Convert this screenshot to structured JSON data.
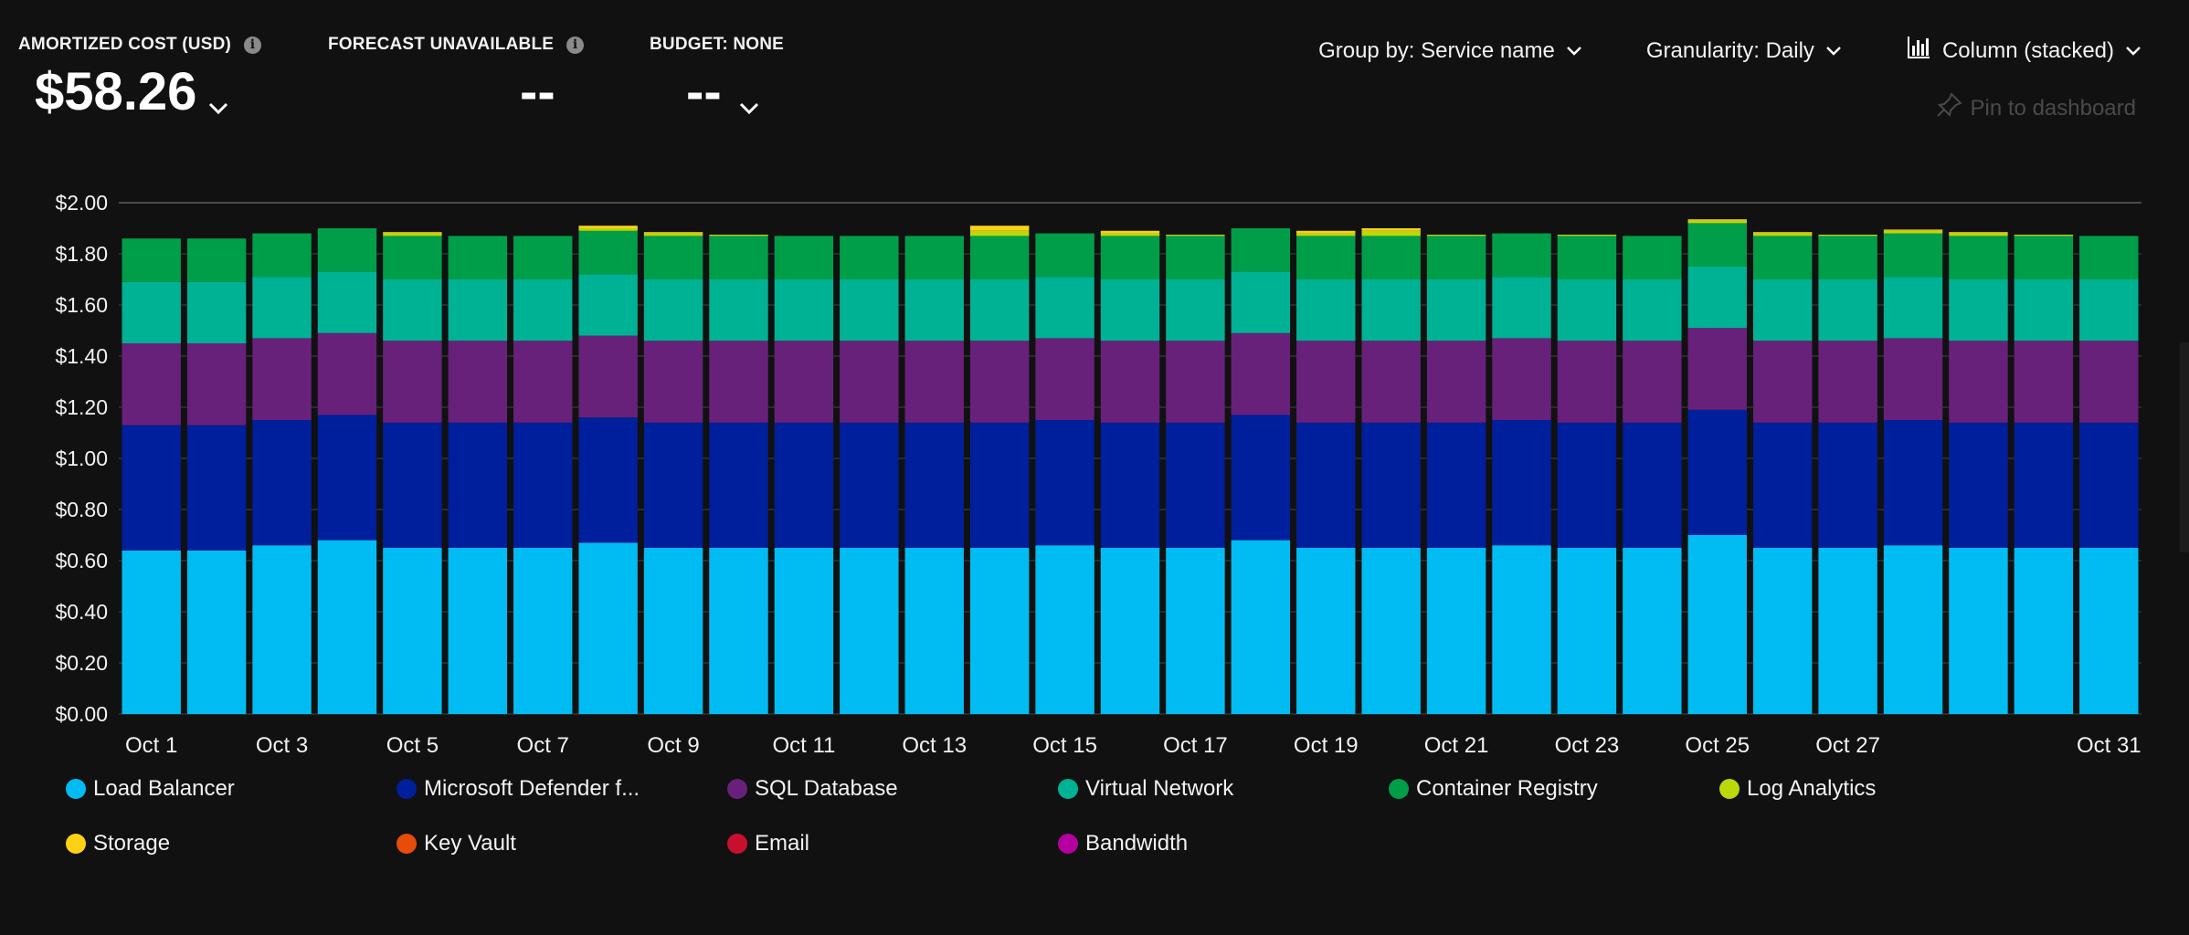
{
  "kpis": [
    {
      "label": "AMORTIZED COST (USD)",
      "value": "$58.26",
      "info": true,
      "chevron": true
    },
    {
      "label": "FORECAST UNAVAILABLE",
      "value": "--",
      "info": true,
      "chevron": false
    },
    {
      "label": "BUDGET: NONE",
      "value": "--",
      "info": false,
      "chevron": true
    }
  ],
  "toolbar": {
    "group_by": "Group by: Service name",
    "granularity": "Granularity: Daily",
    "chart_view": "Column (stacked)",
    "pin": "Pin to dashboard"
  },
  "chart_data": {
    "type": "bar",
    "stacked": true,
    "ylim": [
      0,
      2.0
    ],
    "yticks": [
      0,
      0.2,
      0.4,
      0.6,
      0.8,
      1.0,
      1.2,
      1.4,
      1.6,
      1.8,
      2.0
    ],
    "ytick_labels": [
      "$0.00",
      "$0.20",
      "$0.40",
      "$0.60",
      "$0.80",
      "$1.00",
      "$1.20",
      "$1.40",
      "$1.60",
      "$1.80",
      "$2.00"
    ],
    "categories": [
      "Oct 1",
      "Oct 2",
      "Oct 3",
      "Oct 4",
      "Oct 5",
      "Oct 6",
      "Oct 7",
      "Oct 8",
      "Oct 9",
      "Oct 10",
      "Oct 11",
      "Oct 12",
      "Oct 13",
      "Oct 14",
      "Oct 15",
      "Oct 16",
      "Oct 17",
      "Oct 18",
      "Oct 19",
      "Oct 20",
      "Oct 21",
      "Oct 22",
      "Oct 23",
      "Oct 24",
      "Oct 25",
      "Oct 26",
      "Oct 27",
      "Oct 28",
      "Oct 29",
      "Oct 30",
      "Oct 31"
    ],
    "xtick_labels": [
      "Oct 1",
      "",
      "Oct 3",
      "",
      "Oct 5",
      "",
      "Oct 7",
      "",
      "Oct 9",
      "",
      "Oct 11",
      "",
      "Oct 13",
      "",
      "Oct 15",
      "",
      "Oct 17",
      "",
      "Oct 19",
      "",
      "Oct 21",
      "",
      "Oct 23",
      "",
      "Oct 25",
      "",
      "Oct 27",
      "",
      "",
      "",
      "Oct 31"
    ],
    "legend_position": "bottom",
    "grid": true,
    "series": [
      {
        "name": "Load Balancer",
        "color": "#00bcf2",
        "values": [
          0.64,
          0.64,
          0.66,
          0.68,
          0.65,
          0.65,
          0.65,
          0.67,
          0.65,
          0.65,
          0.65,
          0.65,
          0.65,
          0.65,
          0.66,
          0.65,
          0.65,
          0.68,
          0.65,
          0.65,
          0.65,
          0.66,
          0.65,
          0.65,
          0.7,
          0.65,
          0.65,
          0.66,
          0.65,
          0.65,
          0.65
        ]
      },
      {
        "name": "Microsoft Defender f...",
        "color": "#001f9c",
        "values": [
          0.49,
          0.49,
          0.49,
          0.49,
          0.49,
          0.49,
          0.49,
          0.49,
          0.49,
          0.49,
          0.49,
          0.49,
          0.49,
          0.49,
          0.49,
          0.49,
          0.49,
          0.49,
          0.49,
          0.49,
          0.49,
          0.49,
          0.49,
          0.49,
          0.49,
          0.49,
          0.49,
          0.49,
          0.49,
          0.49,
          0.49
        ]
      },
      {
        "name": "SQL Database",
        "color": "#68217a",
        "values": [
          0.32,
          0.32,
          0.32,
          0.32,
          0.32,
          0.32,
          0.32,
          0.32,
          0.32,
          0.32,
          0.32,
          0.32,
          0.32,
          0.32,
          0.32,
          0.32,
          0.32,
          0.32,
          0.32,
          0.32,
          0.32,
          0.32,
          0.32,
          0.32,
          0.32,
          0.32,
          0.32,
          0.32,
          0.32,
          0.32,
          0.32
        ]
      },
      {
        "name": "Virtual Network",
        "color": "#00b294",
        "values": [
          0.24,
          0.24,
          0.24,
          0.24,
          0.24,
          0.24,
          0.24,
          0.24,
          0.24,
          0.24,
          0.24,
          0.24,
          0.24,
          0.24,
          0.24,
          0.24,
          0.24,
          0.24,
          0.24,
          0.24,
          0.24,
          0.24,
          0.24,
          0.24,
          0.24,
          0.24,
          0.24,
          0.24,
          0.24,
          0.24,
          0.24
        ]
      },
      {
        "name": "Container Registry",
        "color": "#009e49",
        "values": [
          0.17,
          0.17,
          0.17,
          0.17,
          0.17,
          0.17,
          0.17,
          0.17,
          0.17,
          0.17,
          0.17,
          0.17,
          0.17,
          0.17,
          0.17,
          0.17,
          0.17,
          0.17,
          0.17,
          0.17,
          0.17,
          0.17,
          0.17,
          0.17,
          0.17,
          0.17,
          0.17,
          0.17,
          0.17,
          0.17,
          0.17
        ]
      },
      {
        "name": "Log Analytics",
        "color": "#bad80a",
        "values": [
          0,
          0,
          0,
          0,
          0.01,
          0,
          0,
          0.01,
          0.01,
          0.005,
          0,
          0,
          0,
          0.02,
          0,
          0.01,
          0.005,
          0,
          0.01,
          0.02,
          0.005,
          0,
          0.005,
          0,
          0.01,
          0.01,
          0.005,
          0.01,
          0.01,
          0.005,
          0
        ]
      },
      {
        "name": "Storage",
        "color": "#fcd116",
        "values": [
          0,
          0,
          0,
          0,
          0.005,
          0,
          0,
          0.01,
          0.005,
          0,
          0,
          0,
          0,
          0.02,
          0,
          0.01,
          0,
          0,
          0.01,
          0.01,
          0,
          0,
          0,
          0,
          0.005,
          0.005,
          0,
          0.005,
          0.005,
          0,
          0
        ]
      },
      {
        "name": "Key Vault",
        "color": "#e74c0a",
        "values": [
          0,
          0,
          0,
          0,
          0,
          0,
          0,
          0,
          0,
          0,
          0,
          0,
          0,
          0,
          0,
          0,
          0,
          0,
          0,
          0,
          0,
          0,
          0,
          0,
          0,
          0,
          0,
          0,
          0,
          0,
          0
        ]
      },
      {
        "name": "Email",
        "color": "#c8102e",
        "values": [
          0,
          0,
          0,
          0,
          0,
          0,
          0,
          0,
          0,
          0,
          0,
          0,
          0,
          0,
          0,
          0,
          0,
          0,
          0,
          0,
          0,
          0,
          0,
          0,
          0,
          0,
          0,
          0,
          0,
          0,
          0
        ]
      },
      {
        "name": "Bandwidth",
        "color": "#b4009e",
        "values": [
          0,
          0,
          0,
          0,
          0,
          0,
          0,
          0,
          0,
          0,
          0,
          0,
          0,
          0,
          0,
          0,
          0,
          0,
          0,
          0,
          0,
          0,
          0,
          0,
          0,
          0,
          0,
          0,
          0,
          0,
          0
        ]
      }
    ]
  }
}
